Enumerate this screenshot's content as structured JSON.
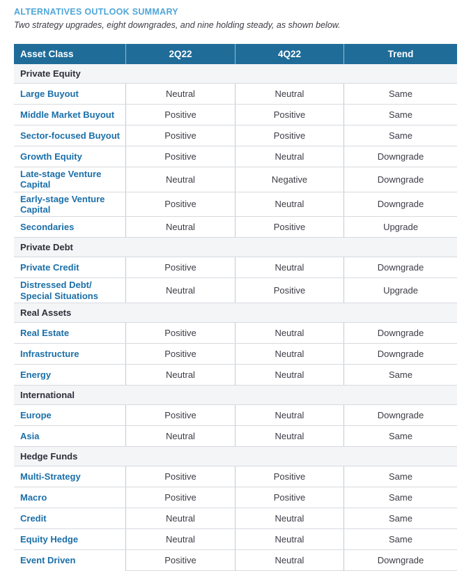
{
  "page": {
    "title": "ALTERNATIVES OUTLOOK SUMMARY",
    "subtitle": "Two strategy upgrades, eight downgrades, and nine holding steady, as shown below."
  },
  "colors": {
    "title_blue": "#4FA6D8",
    "header_bg": "#1F6C99",
    "header_text": "#FFFFFF",
    "section_bg": "#F4F5F7",
    "section_text": "#2F2F3A",
    "asset_blue": "#1B6FA8",
    "body_text": "#3C3C46",
    "row_border": "#D6DADF",
    "col_divider": "#C3C9D2"
  },
  "table": {
    "columns": [
      "Asset Class",
      "2Q22",
      "4Q22",
      "Trend"
    ],
    "sections": [
      {
        "name": "Private Equity",
        "rows": [
          {
            "asset": "Large Buyout",
            "q2": "Neutral",
            "q4": "Neutral",
            "trend": "Same"
          },
          {
            "asset": "Middle Market Buyout",
            "q2": "Positive",
            "q4": "Positive",
            "trend": "Same"
          },
          {
            "asset": "Sector-focused Buyout",
            "q2": "Positive",
            "q4": "Positive",
            "trend": "Same"
          },
          {
            "asset": "Growth Equity",
            "q2": "Positive",
            "q4": "Neutral",
            "trend": "Downgrade"
          },
          {
            "asset": "Late-stage Venture Capital",
            "q2": "Neutral",
            "q4": "Negative",
            "trend": "Downgrade"
          },
          {
            "asset": "Early-stage Venture Capital",
            "q2": "Positive",
            "q4": "Neutral",
            "trend": "Downgrade"
          },
          {
            "asset": "Secondaries",
            "q2": "Neutral",
            "q4": "Positive",
            "trend": "Upgrade"
          }
        ]
      },
      {
        "name": "Private Debt",
        "rows": [
          {
            "asset": "Private Credit",
            "q2": "Positive",
            "q4": "Neutral",
            "trend": "Downgrade"
          },
          {
            "asset": "Distressed Debt/\nSpecial Situations",
            "q2": "Neutral",
            "q4": "Positive",
            "trend": "Upgrade"
          }
        ]
      },
      {
        "name": "Real Assets",
        "rows": [
          {
            "asset": "Real Estate",
            "q2": "Positive",
            "q4": "Neutral",
            "trend": "Downgrade"
          },
          {
            "asset": "Infrastructure",
            "q2": "Positive",
            "q4": "Neutral",
            "trend": "Downgrade"
          },
          {
            "asset": "Energy",
            "q2": "Neutral",
            "q4": "Neutral",
            "trend": "Same"
          }
        ]
      },
      {
        "name": "International",
        "rows": [
          {
            "asset": "Europe",
            "q2": "Positive",
            "q4": "Neutral",
            "trend": "Downgrade"
          },
          {
            "asset": "Asia",
            "q2": "Neutral",
            "q4": "Neutral",
            "trend": "Same"
          }
        ]
      },
      {
        "name": "Hedge Funds",
        "rows": [
          {
            "asset": "Multi-Strategy",
            "q2": "Positive",
            "q4": "Positive",
            "trend": "Same"
          },
          {
            "asset": "Macro",
            "q2": "Positive",
            "q4": "Positive",
            "trend": "Same"
          },
          {
            "asset": "Credit",
            "q2": "Neutral",
            "q4": "Neutral",
            "trend": "Same"
          },
          {
            "asset": "Equity Hedge",
            "q2": "Neutral",
            "q4": "Neutral",
            "trend": "Same"
          },
          {
            "asset": "Event Driven",
            "q2": "Positive",
            "q4": "Neutral",
            "trend": "Downgrade"
          }
        ]
      }
    ]
  }
}
